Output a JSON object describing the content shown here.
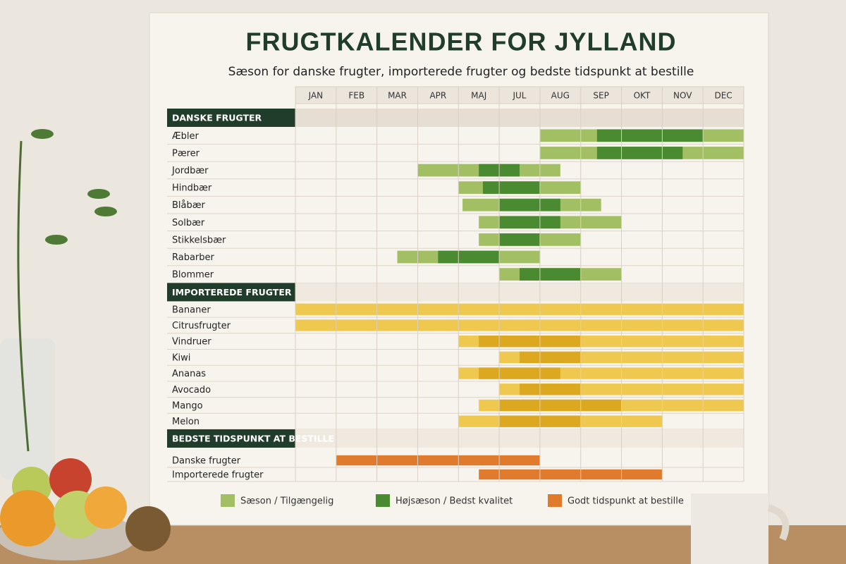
{
  "calendar": {
    "title": "FRUGTKALENDER FOR JYLLAND",
    "subtitle": "Sæson for danske frugter, importerede frugter og bedste tidspunkt at bestille",
    "months": [
      "JAN",
      "FEB",
      "MAR",
      "APR",
      "MAJ",
      "JUL",
      "AUG",
      "SEP",
      "OKT",
      "NOV",
      "DEC"
    ],
    "sections": [
      {
        "title": "DANSKE FRUGTER",
        "rows": [
          {
            "label": "Æbler",
            "segments": [
              {
                "start": 6,
                "end": 11,
                "color": "#a3bf64"
              },
              {
                "start": 7.4,
                "end": 10,
                "color": "#4a8a30"
              }
            ]
          },
          {
            "label": "Pærer",
            "segments": [
              {
                "start": 6,
                "end": 11,
                "color": "#a3bf64"
              },
              {
                "start": 7.4,
                "end": 9.5,
                "color": "#4a8a30"
              }
            ]
          },
          {
            "label": "Jordbær",
            "segments": [
              {
                "start": 3,
                "end": 6.5,
                "color": "#a3bf64"
              },
              {
                "start": 4.5,
                "end": 5.5,
                "color": "#4a8a30"
              }
            ]
          },
          {
            "label": "Hindbær",
            "segments": [
              {
                "start": 4,
                "end": 7,
                "color": "#a3bf64"
              },
              {
                "start": 4.6,
                "end": 6,
                "color": "#4a8a30"
              }
            ]
          },
          {
            "label": "Blåbær",
            "segments": [
              {
                "start": 4.1,
                "end": 7.5,
                "color": "#a3bf64"
              },
              {
                "start": 5,
                "end": 6.5,
                "color": "#4a8a30"
              }
            ]
          },
          {
            "label": "Solbær",
            "segments": [
              {
                "start": 4.5,
                "end": 8,
                "color": "#a3bf64"
              },
              {
                "start": 5,
                "end": 6.5,
                "color": "#4a8a30"
              }
            ]
          },
          {
            "label": "Stikkelsbær",
            "segments": [
              {
                "start": 4.5,
                "end": 7,
                "color": "#a3bf64"
              },
              {
                "start": 5,
                "end": 6,
                "color": "#4a8a30"
              }
            ]
          },
          {
            "label": "Rabarber",
            "segments": [
              {
                "start": 2.5,
                "end": 6,
                "color": "#a3bf64"
              },
              {
                "start": 3.5,
                "end": 5,
                "color": "#4a8a30"
              }
            ]
          },
          {
            "label": "Blommer",
            "segments": [
              {
                "start": 5,
                "end": 8,
                "color": "#a3bf64"
              },
              {
                "start": 5.5,
                "end": 7,
                "color": "#4a8a30"
              }
            ]
          }
        ]
      },
      {
        "title": "IMPORTEREDE FRUGTER",
        "rows": [
          {
            "label": "Bananer",
            "segments": [
              {
                "start": 0,
                "end": 11,
                "color": "#efc84f"
              }
            ]
          },
          {
            "label": "Citrusfrugter",
            "segments": [
              {
                "start": 0,
                "end": 11,
                "color": "#efc84f"
              }
            ]
          },
          {
            "label": "Vindruer",
            "segments": [
              {
                "start": 4,
                "end": 11,
                "color": "#efc84f"
              },
              {
                "start": 4.5,
                "end": 7,
                "color": "#dba81f"
              }
            ]
          },
          {
            "label": "Kiwi",
            "segments": [
              {
                "start": 5,
                "end": 11,
                "color": "#efc84f"
              },
              {
                "start": 5.5,
                "end": 7,
                "color": "#dba81f"
              }
            ]
          },
          {
            "label": "Ananas",
            "segments": [
              {
                "start": 4,
                "end": 11,
                "color": "#efc84f"
              },
              {
                "start": 4.5,
                "end": 6.5,
                "color": "#dba81f"
              }
            ]
          },
          {
            "label": "Avocado",
            "segments": [
              {
                "start": 5,
                "end": 11,
                "color": "#efc84f"
              },
              {
                "start": 5.5,
                "end": 7,
                "color": "#dba81f"
              }
            ]
          },
          {
            "label": "Mango",
            "segments": [
              {
                "start": 4.5,
                "end": 11,
                "color": "#efc84f"
              },
              {
                "start": 5,
                "end": 8,
                "color": "#dba81f"
              }
            ]
          },
          {
            "label": "Melon",
            "segments": [
              {
                "start": 4,
                "end": 9,
                "color": "#efc84f"
              },
              {
                "start": 5,
                "end": 7,
                "color": "#dba81f"
              }
            ]
          }
        ]
      },
      {
        "title": "BEDSTE TIDSPUNKT AT BESTILLE",
        "rows": [
          {
            "label": "Danske frugter",
            "segments": [
              {
                "start": 1,
                "end": 6,
                "color": "#e07b2e"
              }
            ]
          },
          {
            "label": "Importerede frugter",
            "segments": [
              {
                "start": 4.5,
                "end": 9,
                "color": "#e07b2e"
              }
            ]
          }
        ]
      }
    ],
    "legend": [
      {
        "label": "Sæson / Tilgængelig",
        "color": "#a3bf64"
      },
      {
        "label": "Højsæson / Bedst kvalitet",
        "color": "#4a8a30"
      },
      {
        "label": "Godt tidspunkt at bestille",
        "color": "#e07b2e"
      }
    ]
  }
}
